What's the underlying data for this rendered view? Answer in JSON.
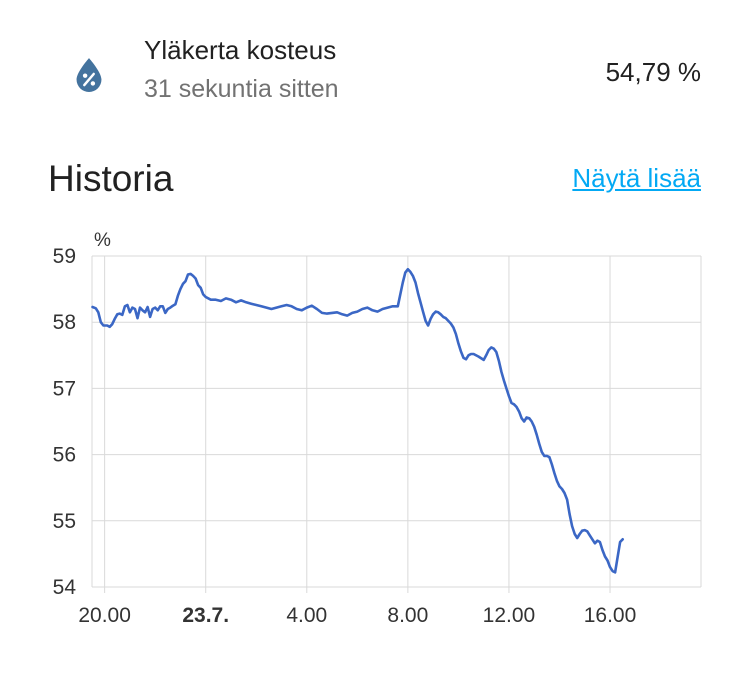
{
  "entity": {
    "name": "Yläkerta kosteus",
    "last_changed": "31 sekuntia sitten",
    "value": "54,79 %",
    "icon": "water-percent-icon",
    "icon_color": "#44739e"
  },
  "history": {
    "title": "Historia",
    "show_more": "Näytä lisää",
    "link_color": "#03a9f4"
  },
  "chart_data": {
    "type": "line",
    "unit": "%",
    "ylim": [
      54,
      59
    ],
    "yticks": [
      "54",
      "55",
      "56",
      "57",
      "58",
      "59"
    ],
    "xlim": [
      19.5,
      43.6
    ],
    "xticks": [
      {
        "x": 20,
        "label": "20.00",
        "bold": false
      },
      {
        "x": 24,
        "label": "23.7.",
        "bold": true
      },
      {
        "x": 28,
        "label": "4.00",
        "bold": false
      },
      {
        "x": 32,
        "label": "8.00",
        "bold": false
      },
      {
        "x": 36,
        "label": "12.00",
        "bold": false
      },
      {
        "x": 40,
        "label": "16.00",
        "bold": false
      }
    ],
    "grid": true,
    "line_color": "#3b67c5",
    "series": [
      {
        "points": [
          [
            19.52,
            58.23
          ],
          [
            19.65,
            58.21
          ],
          [
            19.75,
            58.15
          ],
          [
            19.85,
            58.0
          ],
          [
            19.95,
            57.95
          ],
          [
            20.1,
            57.95
          ],
          [
            20.2,
            57.93
          ],
          [
            20.3,
            57.97
          ],
          [
            20.4,
            58.05
          ],
          [
            20.5,
            58.12
          ],
          [
            20.6,
            58.13
          ],
          [
            20.7,
            58.11
          ],
          [
            20.8,
            58.24
          ],
          [
            20.9,
            58.26
          ],
          [
            21.0,
            58.15
          ],
          [
            21.1,
            58.22
          ],
          [
            21.2,
            58.2
          ],
          [
            21.3,
            58.06
          ],
          [
            21.4,
            58.22
          ],
          [
            21.5,
            58.18
          ],
          [
            21.6,
            58.15
          ],
          [
            21.7,
            58.23
          ],
          [
            21.8,
            58.08
          ],
          [
            21.9,
            58.2
          ],
          [
            22.0,
            58.22
          ],
          [
            22.1,
            58.18
          ],
          [
            22.2,
            58.24
          ],
          [
            22.3,
            58.24
          ],
          [
            22.4,
            58.14
          ],
          [
            22.5,
            58.2
          ],
          [
            22.6,
            58.22
          ],
          [
            22.7,
            58.25
          ],
          [
            22.8,
            58.27
          ],
          [
            22.9,
            58.4
          ],
          [
            23.0,
            58.5
          ],
          [
            23.1,
            58.58
          ],
          [
            23.2,
            58.62
          ],
          [
            23.3,
            58.72
          ],
          [
            23.4,
            58.73
          ],
          [
            23.5,
            58.7
          ],
          [
            23.6,
            58.66
          ],
          [
            23.7,
            58.56
          ],
          [
            23.8,
            58.52
          ],
          [
            23.9,
            58.42
          ],
          [
            24.0,
            58.38
          ],
          [
            24.2,
            58.34
          ],
          [
            24.4,
            58.34
          ],
          [
            24.6,
            58.32
          ],
          [
            24.8,
            58.36
          ],
          [
            25.0,
            58.34
          ],
          [
            25.2,
            58.3
          ],
          [
            25.4,
            58.33
          ],
          [
            25.6,
            58.3
          ],
          [
            25.8,
            58.28
          ],
          [
            26.0,
            58.26
          ],
          [
            26.2,
            58.24
          ],
          [
            26.4,
            58.22
          ],
          [
            26.6,
            58.2
          ],
          [
            26.8,
            58.22
          ],
          [
            27.0,
            58.24
          ],
          [
            27.2,
            58.26
          ],
          [
            27.4,
            58.24
          ],
          [
            27.6,
            58.2
          ],
          [
            27.8,
            58.18
          ],
          [
            28.0,
            58.22
          ],
          [
            28.2,
            58.25
          ],
          [
            28.4,
            58.2
          ],
          [
            28.6,
            58.14
          ],
          [
            28.8,
            58.13
          ],
          [
            29.0,
            58.14
          ],
          [
            29.2,
            58.15
          ],
          [
            29.4,
            58.12
          ],
          [
            29.6,
            58.1
          ],
          [
            29.8,
            58.14
          ],
          [
            30.0,
            58.16
          ],
          [
            30.2,
            58.2
          ],
          [
            30.4,
            58.22
          ],
          [
            30.6,
            58.18
          ],
          [
            30.8,
            58.16
          ],
          [
            31.0,
            58.2
          ],
          [
            31.2,
            58.22
          ],
          [
            31.4,
            58.24
          ],
          [
            31.6,
            58.24
          ],
          [
            31.7,
            58.42
          ],
          [
            31.8,
            58.6
          ],
          [
            31.9,
            58.75
          ],
          [
            32.0,
            58.8
          ],
          [
            32.1,
            58.76
          ],
          [
            32.2,
            58.7
          ],
          [
            32.3,
            58.6
          ],
          [
            32.4,
            58.44
          ],
          [
            32.5,
            58.3
          ],
          [
            32.6,
            58.16
          ],
          [
            32.7,
            58.02
          ],
          [
            32.8,
            57.95
          ],
          [
            32.9,
            58.05
          ],
          [
            33.0,
            58.12
          ],
          [
            33.1,
            58.16
          ],
          [
            33.2,
            58.15
          ],
          [
            33.3,
            58.12
          ],
          [
            33.4,
            58.08
          ],
          [
            33.5,
            58.06
          ],
          [
            33.6,
            58.02
          ],
          [
            33.7,
            57.98
          ],
          [
            33.8,
            57.92
          ],
          [
            33.9,
            57.82
          ],
          [
            34.0,
            57.68
          ],
          [
            34.1,
            57.56
          ],
          [
            34.2,
            57.46
          ],
          [
            34.3,
            57.44
          ],
          [
            34.4,
            57.5
          ],
          [
            34.5,
            57.52
          ],
          [
            34.6,
            57.52
          ],
          [
            34.8,
            57.48
          ],
          [
            35.0,
            57.43
          ],
          [
            35.1,
            57.5
          ],
          [
            35.2,
            57.58
          ],
          [
            35.3,
            57.62
          ],
          [
            35.4,
            57.6
          ],
          [
            35.5,
            57.55
          ],
          [
            35.6,
            57.42
          ],
          [
            35.7,
            57.25
          ],
          [
            35.8,
            57.12
          ],
          [
            35.9,
            57.0
          ],
          [
            36.0,
            56.88
          ],
          [
            36.1,
            56.78
          ],
          [
            36.2,
            56.76
          ],
          [
            36.3,
            56.72
          ],
          [
            36.4,
            56.65
          ],
          [
            36.5,
            56.55
          ],
          [
            36.6,
            56.5
          ],
          [
            36.7,
            56.56
          ],
          [
            36.8,
            56.55
          ],
          [
            36.9,
            56.5
          ],
          [
            37.0,
            56.42
          ],
          [
            37.1,
            56.3
          ],
          [
            37.2,
            56.16
          ],
          [
            37.3,
            56.04
          ],
          [
            37.4,
            55.98
          ],
          [
            37.5,
            55.98
          ],
          [
            37.6,
            55.96
          ],
          [
            37.7,
            55.85
          ],
          [
            37.8,
            55.72
          ],
          [
            37.9,
            55.6
          ],
          [
            38.0,
            55.52
          ],
          [
            38.1,
            55.48
          ],
          [
            38.2,
            55.42
          ],
          [
            38.3,
            55.32
          ],
          [
            38.4,
            55.1
          ],
          [
            38.5,
            54.92
          ],
          [
            38.6,
            54.8
          ],
          [
            38.7,
            54.74
          ],
          [
            38.8,
            54.8
          ],
          [
            38.9,
            54.85
          ],
          [
            39.0,
            54.86
          ],
          [
            39.1,
            54.84
          ],
          [
            39.2,
            54.78
          ],
          [
            39.3,
            54.72
          ],
          [
            39.4,
            54.66
          ],
          [
            39.5,
            54.7
          ],
          [
            39.6,
            54.68
          ],
          [
            39.7,
            54.56
          ],
          [
            39.8,
            54.46
          ],
          [
            39.9,
            54.4
          ],
          [
            40.0,
            54.3
          ],
          [
            40.1,
            54.24
          ],
          [
            40.2,
            54.22
          ],
          [
            40.3,
            54.45
          ],
          [
            40.4,
            54.68
          ],
          [
            40.5,
            54.72
          ]
        ]
      }
    ]
  }
}
